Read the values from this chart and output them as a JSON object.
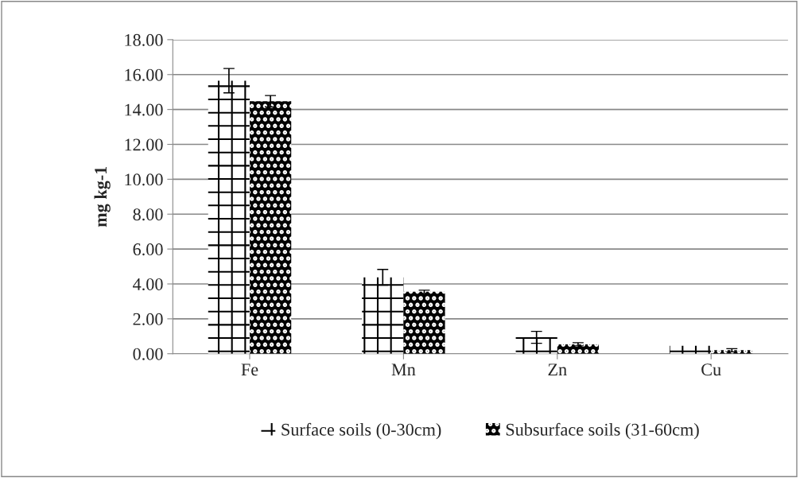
{
  "chart_data": {
    "type": "bar",
    "ylabel": "mg kg-1",
    "categories": [
      "Fe",
      "Mn",
      "Zn",
      "Cu"
    ],
    "series": [
      {
        "name": "Surface soils (0-30cm)",
        "color": "#ffffff",
        "values": [
          15.65,
          4.38,
          0.94,
          0.45
        ],
        "errors": [
          0.7,
          0.45,
          0.34,
          null
        ]
      },
      {
        "name": "Subsurface soils (31-60cm)",
        "color": "#000000",
        "values": [
          14.47,
          3.55,
          0.54,
          0.2
        ],
        "errors": [
          0.33,
          0.09,
          0.09,
          0.09
        ]
      }
    ],
    "ylim": [
      0,
      18
    ],
    "yticks": [
      {
        "value": 0,
        "label": "0.00"
      },
      {
        "value": 2,
        "label": "2.00"
      },
      {
        "value": 4,
        "label": "4.00"
      },
      {
        "value": 6,
        "label": "6.00"
      },
      {
        "value": 8,
        "label": "8.00"
      },
      {
        "value": 10,
        "label": "10.00"
      },
      {
        "value": 12,
        "label": "12.00"
      },
      {
        "value": 14,
        "label": "14.00"
      },
      {
        "value": 16,
        "label": "16.00"
      },
      {
        "value": 18,
        "label": "18.00"
      }
    ],
    "grid": "y",
    "legend": "bottom"
  }
}
